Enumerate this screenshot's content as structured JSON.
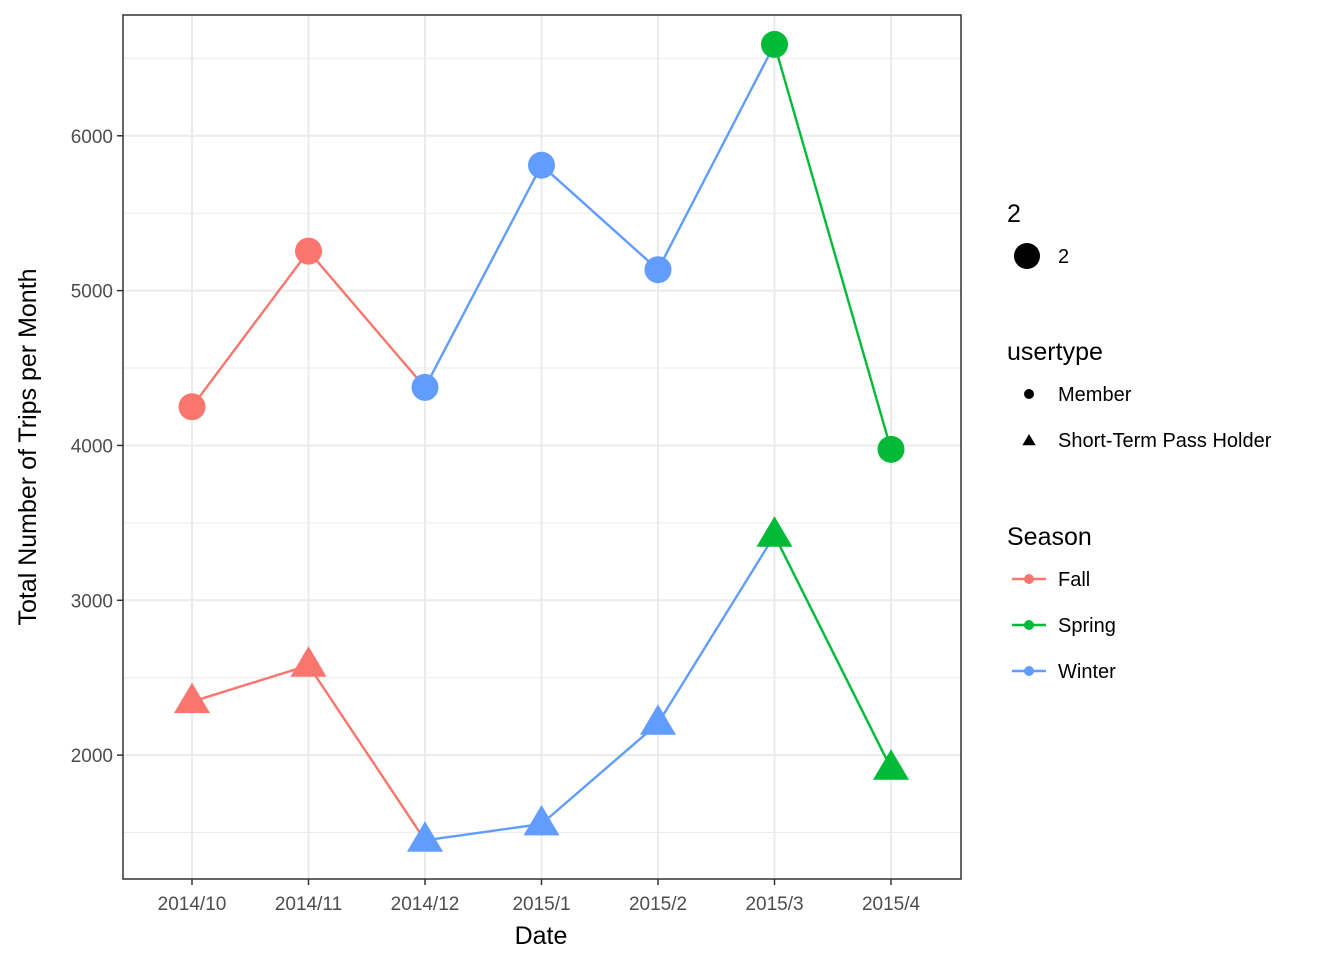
{
  "chart_data": {
    "type": "line",
    "xlabel": "Date",
    "ylabel": "Total Number of Trips per Month",
    "categories": [
      "2014/10",
      "2014/11",
      "2014/12",
      "2015/1",
      "2015/2",
      "2015/3",
      "2015/4"
    ],
    "ylim": [
      1200,
      6780
    ],
    "y_ticks": [
      2000,
      3000,
      4000,
      5000,
      6000
    ],
    "y_tick_labels": [
      "2000",
      "3000",
      "4000",
      "5000",
      "6000"
    ],
    "grid": true,
    "season_colors": {
      "Fall": "#F8766D",
      "Spring": "#00BA38",
      "Winter": "#619CFF"
    },
    "series": [
      {
        "season": "Fall",
        "usertype": "Member",
        "points": [
          [
            "2014/10",
            4250
          ],
          [
            "2014/11",
            5255
          ],
          [
            "2014/12",
            4375
          ]
        ]
      },
      {
        "season": "Winter",
        "usertype": "Member",
        "points": [
          [
            "2014/12",
            4375
          ],
          [
            "2015/1",
            5810
          ],
          [
            "2015/2",
            5135
          ],
          [
            "2015/3",
            6590
          ]
        ]
      },
      {
        "season": "Spring",
        "usertype": "Member",
        "points": [
          [
            "2015/3",
            6590
          ],
          [
            "2015/4",
            3975
          ]
        ]
      },
      {
        "season": "Fall",
        "usertype": "Short-Term Pass Holder",
        "points": [
          [
            "2014/10",
            2345
          ],
          [
            "2014/11",
            2580
          ],
          [
            "2014/12",
            1450
          ]
        ]
      },
      {
        "season": "Winter",
        "usertype": "Short-Term Pass Holder",
        "points": [
          [
            "2014/12",
            1450
          ],
          [
            "2015/1",
            1555
          ],
          [
            "2015/2",
            2205
          ],
          [
            "2015/3",
            3420
          ]
        ]
      },
      {
        "season": "Spring",
        "usertype": "Short-Term Pass Holder",
        "points": [
          [
            "2015/3",
            3420
          ],
          [
            "2015/4",
            1915
          ]
        ]
      }
    ],
    "markers": [
      {
        "x": "2014/10",
        "y": 4250,
        "season": "Fall",
        "usertype": "Member"
      },
      {
        "x": "2014/11",
        "y": 5255,
        "season": "Fall",
        "usertype": "Member"
      },
      {
        "x": "2014/12",
        "y": 4375,
        "season": "Winter",
        "usertype": "Member"
      },
      {
        "x": "2015/1",
        "y": 5810,
        "season": "Winter",
        "usertype": "Member"
      },
      {
        "x": "2015/2",
        "y": 5135,
        "season": "Winter",
        "usertype": "Member"
      },
      {
        "x": "2015/3",
        "y": 6590,
        "season": "Spring",
        "usertype": "Member"
      },
      {
        "x": "2015/4",
        "y": 3975,
        "season": "Spring",
        "usertype": "Member"
      },
      {
        "x": "2014/10",
        "y": 2345,
        "season": "Fall",
        "usertype": "Short-Term Pass Holder"
      },
      {
        "x": "2014/11",
        "y": 2580,
        "season": "Fall",
        "usertype": "Short-Term Pass Holder"
      },
      {
        "x": "2014/12",
        "y": 1450,
        "season": "Winter",
        "usertype": "Short-Term Pass Holder"
      },
      {
        "x": "2015/1",
        "y": 1555,
        "season": "Winter",
        "usertype": "Short-Term Pass Holder"
      },
      {
        "x": "2015/2",
        "y": 2205,
        "season": "Winter",
        "usertype": "Short-Term Pass Holder"
      },
      {
        "x": "2015/3",
        "y": 3420,
        "season": "Spring",
        "usertype": "Short-Term Pass Holder"
      },
      {
        "x": "2015/4",
        "y": 1915,
        "season": "Spring",
        "usertype": "Short-Term Pass Holder"
      }
    ],
    "legends": [
      {
        "title": "2",
        "kind": "size",
        "entries": [
          {
            "label": "2",
            "shape": "circle"
          }
        ]
      },
      {
        "title": "usertype",
        "kind": "shape",
        "entries": [
          {
            "label": "Member",
            "shape": "circle"
          },
          {
            "label": "Short-Term Pass Holder",
            "shape": "triangle"
          }
        ]
      },
      {
        "title": "Season",
        "kind": "color",
        "entries": [
          {
            "label": "Fall",
            "color": "#F8766D"
          },
          {
            "label": "Spring",
            "color": "#00BA38"
          },
          {
            "label": "Winter",
            "color": "#619CFF"
          }
        ]
      }
    ],
    "legend_placement": "right"
  }
}
